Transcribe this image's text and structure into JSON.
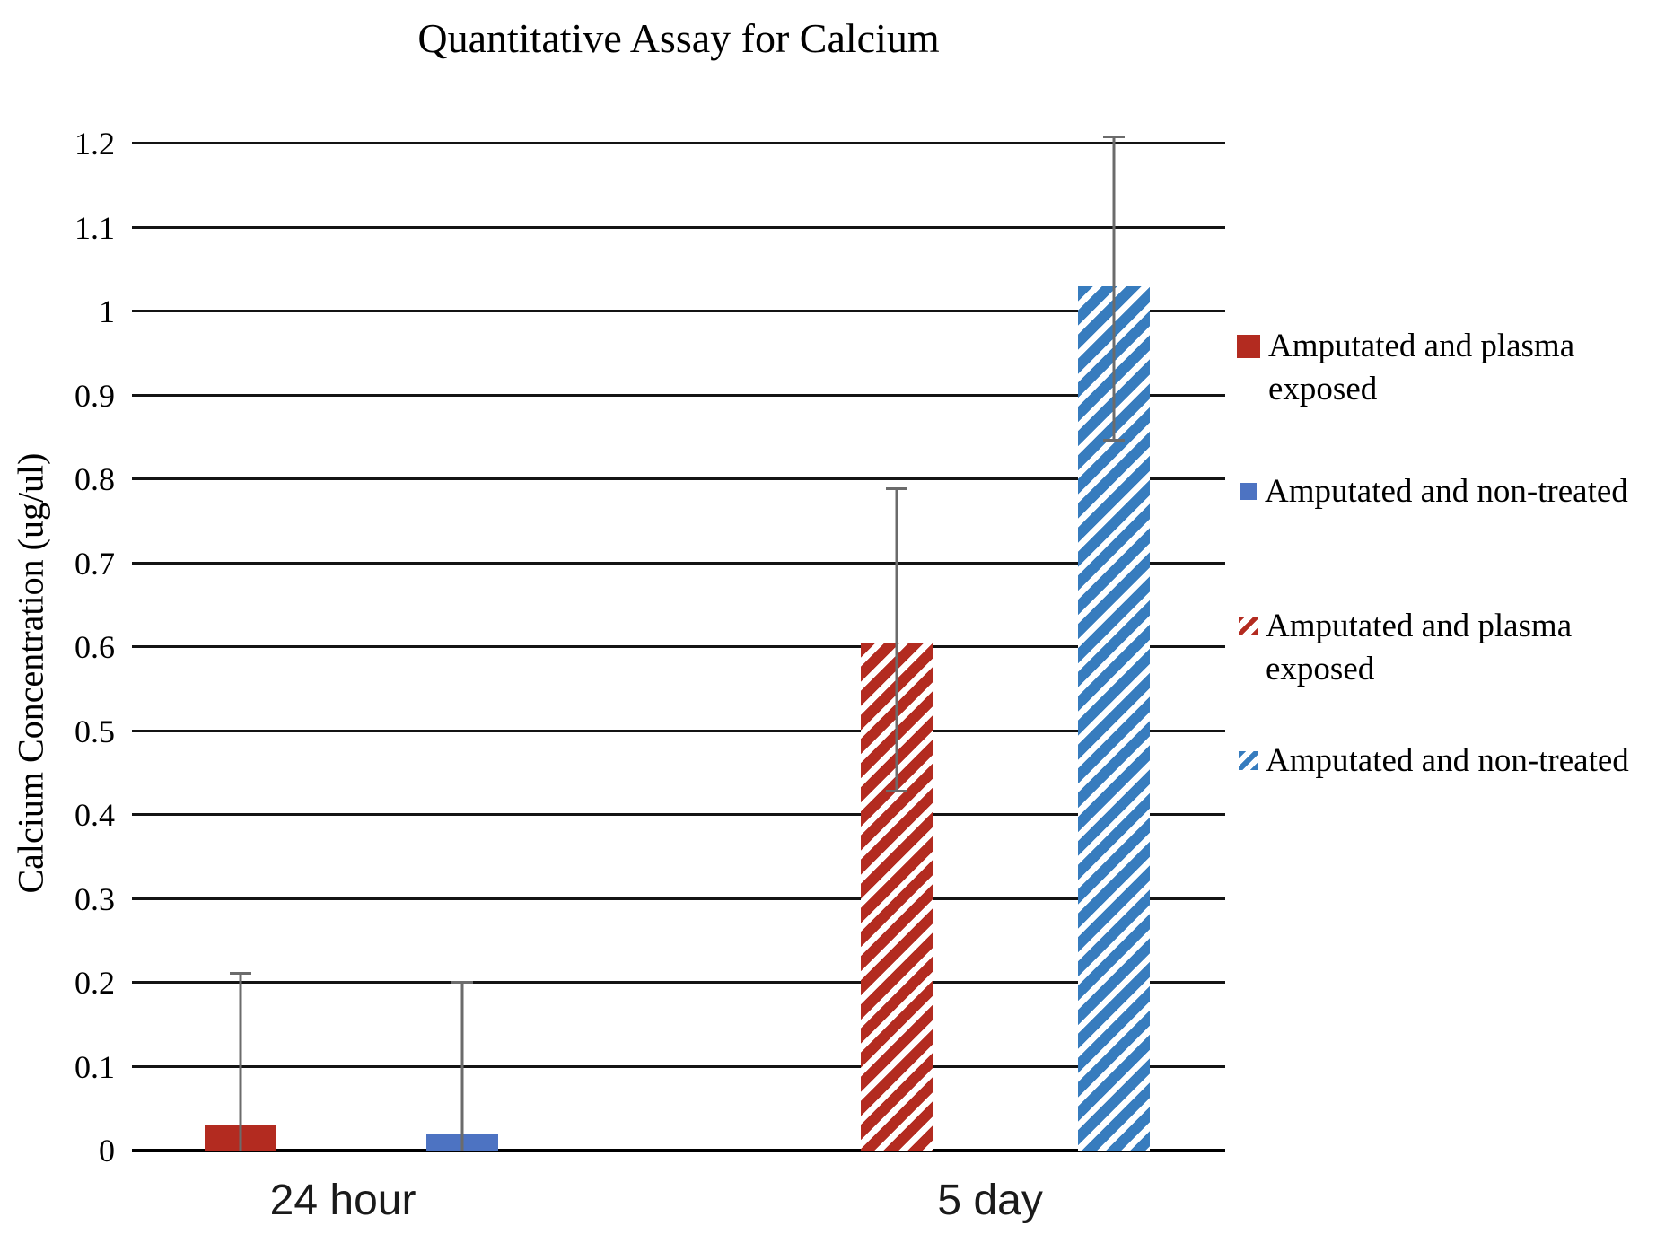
{
  "title": "Quantitative Assay for Calcium",
  "colors": {
    "red": "#b32b20",
    "blue_solid": "#4d73c2",
    "blue_hatched": "#377cbe",
    "error_bar": "#6b6b6b",
    "gridline": "#141414"
  },
  "y_axis": {
    "label": "Calcium Concentration (ug/ul)",
    "tick_labels": [
      "0",
      "0.1",
      "0.2",
      "0.3",
      "0.4",
      "0.5",
      "0.6",
      "0.7",
      "0.8",
      "0.9",
      "1",
      "1.1",
      "1.2"
    ],
    "tick_values": [
      0,
      0.1,
      0.2,
      0.3,
      0.4,
      0.5,
      0.6,
      0.7,
      0.8,
      0.9,
      1.0,
      1.1,
      1.2
    ]
  },
  "x_axis": {
    "categories": [
      "24 hour",
      "5 day"
    ]
  },
  "legend": {
    "items": [
      {
        "label": "Amputated and plasma exposed",
        "swatch": "red-solid"
      },
      {
        "label": "Amputated and non-treated",
        "swatch": "blue-solid"
      },
      {
        "label": "Amputated and plasma exposed",
        "swatch": "red-hatched"
      },
      {
        "label": "Amputated and non-treated",
        "swatch": "blue-hatched"
      }
    ]
  },
  "chart_data": {
    "type": "bar",
    "title": "Quantitative Assay for Calcium",
    "xlabel": "",
    "ylabel": "Calcium Concentration (ug/ul)",
    "ylim": [
      0,
      1.2
    ],
    "ytick_interval": 0.1,
    "grid": "horizontal black lines at every 0.1",
    "legend_position": "right",
    "categories": [
      "24 hour",
      "5 day"
    ],
    "bars": [
      {
        "series": "Amputated and plasma exposed",
        "category": "24 hour",
        "pattern": "solid",
        "color": "#b32b20",
        "value": 0.03,
        "error_up": 0.183,
        "error_down": 0.18
      },
      {
        "series": "Amputated and non-treated",
        "category": "24 hour",
        "pattern": "solid",
        "color": "#4d73c2",
        "value": 0.02,
        "error_up": 0.182,
        "error_down": 0.18
      },
      {
        "series": "Amputated and plasma exposed",
        "category": "5 day",
        "pattern": "hatched",
        "color": "#b32b20",
        "value": 0.605,
        "error_up": 0.185,
        "error_down": 0.178
      },
      {
        "series": "Amputated and non-treated",
        "category": "5 day",
        "pattern": "hatched",
        "color": "#377cbe",
        "value": 1.03,
        "error_up": 0.18,
        "error_down": 0.185
      }
    ]
  }
}
